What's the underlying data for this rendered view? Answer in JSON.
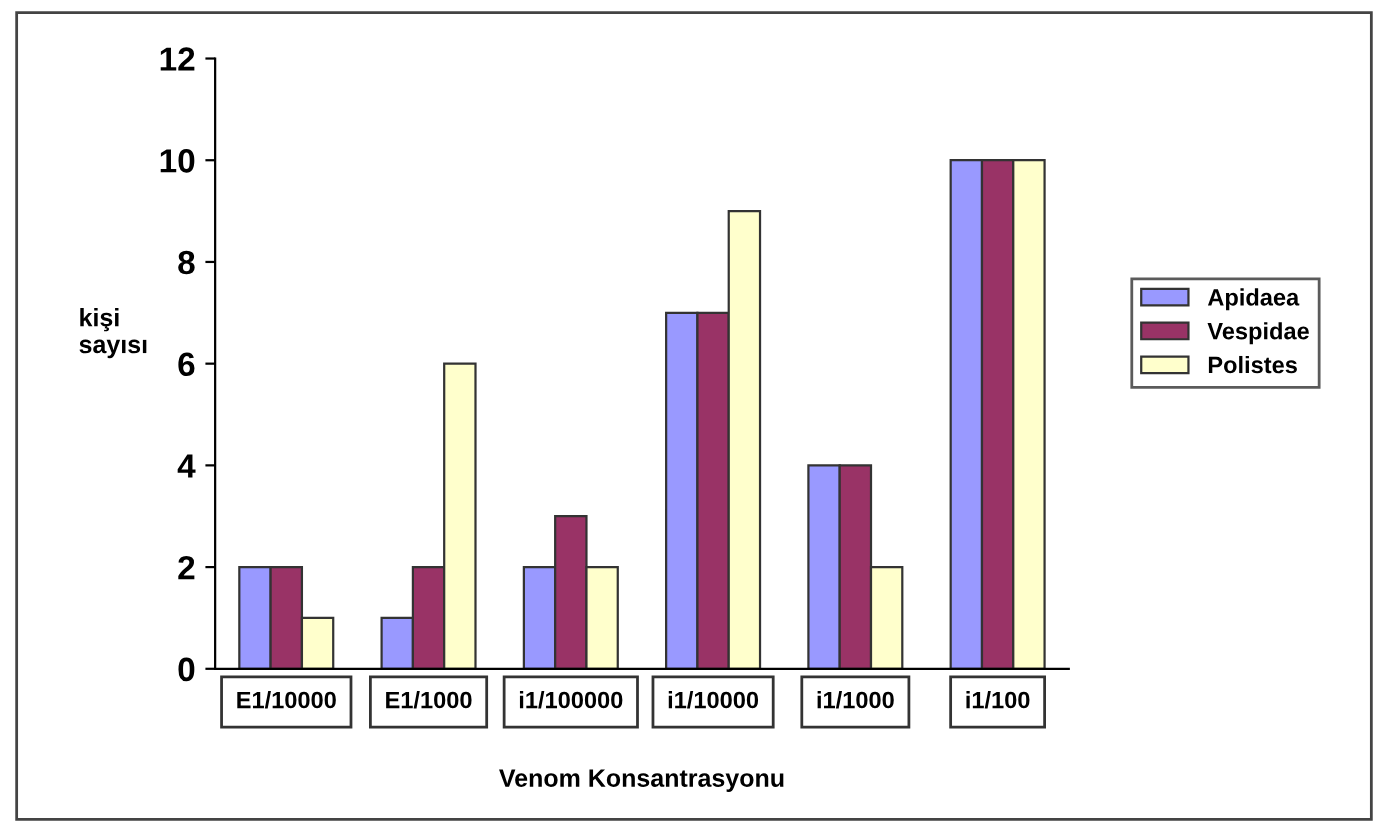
{
  "chart_data": {
    "type": "bar",
    "xlabel": "Venom Konsantrasyonu",
    "ylabel": "kişi\nsayısı",
    "categories": [
      "E1/10000",
      "E1/1000",
      "i1/100000",
      "i1/10000",
      "i1/1000",
      "i1/100"
    ],
    "series": [
      {
        "name": "Apidaea",
        "color": "#9999ff",
        "values": [
          2,
          1,
          2,
          7,
          4,
          10
        ]
      },
      {
        "name": "Vespidae",
        "color": "#993366",
        "values": [
          2,
          2,
          3,
          7,
          4,
          10
        ]
      },
      {
        "name": "Polistes",
        "color": "#ffffcc",
        "values": [
          1,
          6,
          2,
          9,
          2,
          10
        ]
      }
    ],
    "ylim": [
      0,
      12
    ],
    "yticks": [
      0,
      2,
      4,
      6,
      8,
      10,
      12
    ],
    "grid": false,
    "legend": "right"
  }
}
